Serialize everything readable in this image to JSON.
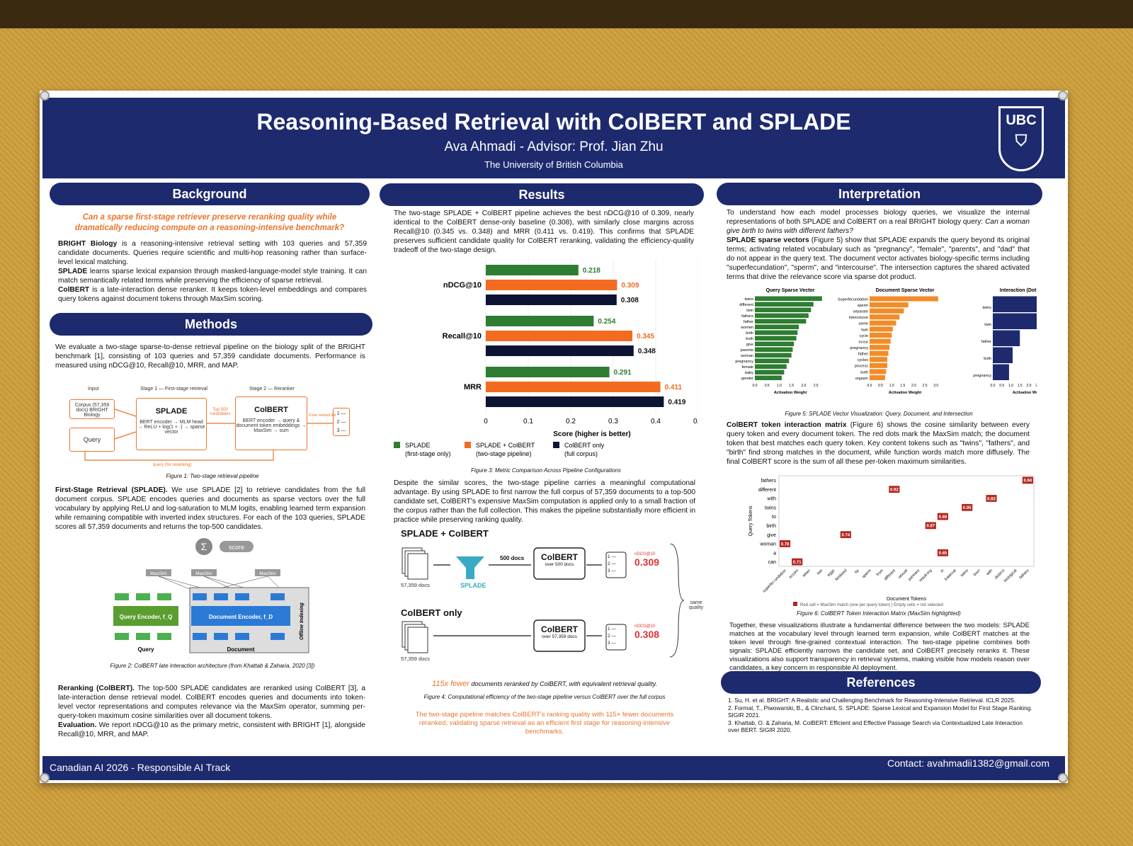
{
  "header": {
    "title": "Reasoning-Based Retrieval with ColBERT and SPLADE",
    "authors": "Ava Ahmadi - Advisor: Prof. Jian Zhu",
    "institution": "The University of British Columbia",
    "logo": "UBC"
  },
  "footer": {
    "left": "Canadian AI 2026 - Responsible AI Track",
    "right": "Contact: avahmadii1382@gmail.com"
  },
  "background": {
    "heading": "Background",
    "question": "Can a sparse first-stage retriever preserve reranking quality while dramatically reducing compute on a reasoning-intensive benchmark?",
    "p1_term": "BRIGHT Biology",
    "p1": " is a reasoning-intensive retrieval setting with 103 queries and 57,359 candidate documents. Queries require scientific and multi-hop reasoning rather than surface-level lexical matching.",
    "p2_term": "SPLADE",
    "p2": " learns sparse lexical expansion through masked-language-model style training. It can match semantically related terms while preserving the efficiency of sparse retrieval.",
    "p3_term": "ColBERT",
    "p3": " is a late-interaction dense reranker. It keeps token-level embeddings and compares query tokens against document tokens through MaxSim scoring."
  },
  "methods": {
    "heading": "Methods",
    "intro": "We evaluate a two-stage sparse-to-dense retrieval pipeline on the biology split of the BRIGHT benchmark [1], consisting of 103 queries and 57,359 candidate documents. Performance is measured using nDCG@10, Recall@10, MRR, and MAP.",
    "fig1": {
      "input": "Input",
      "stage1": "Stage 1 — First-stage retrieval",
      "stage2": "Stage 2 — Reranker",
      "corpus": "Corpus (57,359 docs) BRIGHT Biology",
      "query": "Query",
      "splade": "SPLADE",
      "splade_desc": "BERT encoder → MLM head → ReLU + log(1 + ·) → sparse vector",
      "top": "Top-500 candidates",
      "colbert": "ColBERT",
      "colbert_desc": "BERT encoder → query & document token embeddings → MaxSim → sum",
      "final": "Final ranked list",
      "ranks": [
        "1 —",
        "2 —",
        "3 —"
      ],
      "loop": "query (for reranking)",
      "caption": "Figure 1: Two-stage retrieval pipeline"
    },
    "p_first_term": "First-Stage Retrieval (SPLADE).",
    "p_first": " We use SPLADE [2] to retrieve candidates from the full document corpus. SPLADE encodes queries and documents as sparse vectors over the full vocabulary by applying ReLU and log-saturation to MLM logits, enabling learned term expansion while remaining compatible with inverted index structures. For each of the 103 queries, SPLADE scores all 57,359 documents and returns the top-500 candidates.",
    "fig2": {
      "score": "score",
      "maxsim": "MaxSim",
      "qenc": "Query Encoder, f_Q",
      "denc": "Document Encoder, f_D",
      "query": "Query",
      "doc": "Document",
      "offline": "Offline Indexing",
      "caption": "Figure 2: ColBERT late interaction architecture (from Khattab & Zaharia, 2020 [3])"
    },
    "p_rerank_term": "Reranking (ColBERT).",
    "p_rerank": " The top-500 SPLADE candidates are reranked using ColBERT [3], a late-interaction dense retrieval model. ColBERT encodes queries and documents into token-level vector representations and computes relevance via the MaxSim operator, summing per-query-token maximum cosine similarities over all document tokens.",
    "p_eval_term": "Evaluation.",
    "p_eval": " We report nDCG@10 as the primary metric, consistent with BRIGHT [1], alongside Recall@10, MRR, and MAP."
  },
  "results": {
    "heading": "Results",
    "intro": "The two-stage SPLADE + ColBERT pipeline achieves the best nDCG@10 of 0.309, nearly identical to the ColBERT dense-only baseline (0.308), with similarly close margins across Recall@10 (0.345 vs. 0.348) and MRR (0.411 vs. 0.419). This confirms that SPLADE preserves sufficient candidate quality for ColBERT reranking, validating the efficiency-quality tradeoff of the two-stage design.",
    "fig3_caption": "Figure 3: Metric Comparison Across Pipeline Configurations",
    "p2": "Despite the similar scores, the two-stage pipeline carries a meaningful computational advantage. By using SPLADE to first narrow the full corpus of 57,359 documents to a top-500 candidate set, ColBERT's expensive MaxSim computation is applied only to a small fraction of the corpus rather than the full collection. This makes the pipeline substantially more efficient in practice while preserving ranking quality.",
    "fig4": {
      "title_a": "SPLADE + ColBERT",
      "title_b": "ColBERT only",
      "docs_a": "57,359 docs",
      "docs_b": "57,359 docs",
      "splade": "SPLADE",
      "arrow": "500 docs",
      "colbert": "ColBERT",
      "over_a": "over 500 docs",
      "over_b": "over 57,359 docs",
      "ranks": [
        "1 —",
        "2 —",
        "3 —"
      ],
      "metric": "nDCG@10",
      "score_a": "0.309",
      "score_b": "0.308",
      "same": "same quality",
      "fewer_em": "115x fewer",
      "fewer": " documents reranked by ColBERT, with equivalent retrieval quality.",
      "caption": "Figure 4: Computational efficiency of the two-stage pipeline versus ColBERT over the full corpus"
    },
    "conclusion": "The two-stage pipeline matches ColBERT's ranking quality with 115× fewer documents reranked, validating sparse retrieval as an efficient first stage for reasoning-intensive benchmarks."
  },
  "interp": {
    "heading": "Interpretation",
    "p1a": "To understand how each model processes biology queries, we visualize the internal representations of both SPLADE and ColBERT on a real BRIGHT biology query: ",
    "p1q": "Can a woman give birth to twins with different fathers?",
    "p2_term": "SPLADE sparse vectors",
    "p2": " (Figure 5) show that SPLADE expands the query beyond its original terms; activating related vocabulary such as \"pregnancy\", \"female\", \"parents\", and \"dad\" that do not appear in the query text. The document vector activates biology-specific terms including \"superfecundation\", \"sperm\", and \"intercourse\". The intersection captures the shared activated terms that drive the relevance score via sparse dot product.",
    "fig5_caption": "Figure 5: SPLADE Vector Visualization: Query, Document, and Intersection",
    "p3_term": "ColBERT token interaction matrix",
    "p3": " (Figure 6) shows the cosine similarity between every query token and every document token. The red dots mark the MaxSim match; the document token that best matches each query token. Key content tokens such as \"twins\", \"fathers\", and \"birth\" find strong matches in the document, while function words match more diffusely. The final ColBERT score is the sum of all these per-token maximum similarities.",
    "fig6_caption": "Figure 6: ColBERT Token Interaction Matrix (MaxSim highlighted)",
    "fig6_legend": "Red cell = MaxSim match (one per query token)  |  Empty cells = not selected",
    "p4": "Together, these visualizations illustrate a fundamental difference between the two models: SPLADE matches at the vocabulary level through learned term expansion, while ColBERT matches at the token level through fine-grained contextual interaction. The two-stage pipeline combines both signals: SPLADE efficiently narrows the candidate set, and ColBERT precisely reranks it. These visualizations also support transparency in retrieval systems, making visible how models reason over candidates, a key concern in responsible AI deployment."
  },
  "references": {
    "heading": "References",
    "items": [
      "1. Su, H. et al. BRIGHT: A Realistic and Challenging Benchmark for Reasoning-Intensive Retrieval. ICLR 2025.",
      "2. Formal, T., Piwowarski, B., & Clinchant, S. SPLADE: Sparse Lexical and Expansion Model for First Stage Ranking. SIGIR 2021.",
      "3. Khattab, O. & Zaharia, M. ColBERT: Efficient and Effective Passage Search via Contextualized Late Interaction over BERT. SIGIR 2020."
    ]
  },
  "chart_data": [
    {
      "type": "bar",
      "orientation": "horizontal",
      "categories": [
        "nDCG@10",
        "Recall@10",
        "MRR"
      ],
      "series": [
        {
          "name": "SPLADE (first-stage only)",
          "color": "#2e7d32",
          "values": [
            0.218,
            0.254,
            0.291
          ]
        },
        {
          "name": "SPLADE + ColBERT (two-stage pipeline)",
          "color": "#f26b21",
          "values": [
            0.309,
            0.345,
            0.411
          ]
        },
        {
          "name": "ColBERT only (full corpus)",
          "color": "#0d1433",
          "values": [
            0.308,
            0.348,
            0.419
          ]
        }
      ],
      "xlabel": "Score (higher is better)",
      "xlim": [
        0,
        0.5
      ],
      "xticks": [
        "0",
        "0.1",
        "0.2",
        "0.3",
        "0.4",
        "0.5"
      ],
      "legend": "bottom"
    },
    {
      "type": "bar",
      "orientation": "horizontal",
      "title": "Query Sparse Vector",
      "color": "#2e7d32",
      "categories": [
        "twins",
        "different",
        "twin",
        "fathers",
        "father",
        "women",
        "birth",
        "both",
        "give",
        "parents",
        "woman",
        "pregnancy",
        "female",
        "baby",
        "gender"
      ],
      "values": [
        2.75,
        2.4,
        2.3,
        2.2,
        2.1,
        1.8,
        1.75,
        1.7,
        1.6,
        1.55,
        1.5,
        1.4,
        1.3,
        1.2,
        1.1
      ],
      "xlabel": "Activation Weight",
      "xticks": [
        "0.0",
        "0.5",
        "1.0",
        "1.5",
        "2.0",
        "2.5"
      ]
    },
    {
      "type": "bar",
      "orientation": "horizontal",
      "title": "Document Sparse Vector",
      "color": "#f28c28",
      "categories": [
        "Superfecundation",
        "sperm",
        "separate",
        "intercourse",
        "same",
        "twin",
        "cycle",
        "occur",
        "pregnancy",
        "father",
        "cycles",
        "process",
        "both",
        "orgasm"
      ],
      "values": [
        3.1,
        1.75,
        1.55,
        1.35,
        1.2,
        1.05,
        1.0,
        0.95,
        0.9,
        0.85,
        0.8,
        0.8,
        0.75,
        0.7
      ],
      "xlabel": "Activation Weight",
      "xticks": [
        "0.0",
        "0.5",
        "1.0",
        "1.5",
        "2.0",
        "2.5",
        "3.0"
      ]
    },
    {
      "type": "bar",
      "orientation": "horizontal",
      "title": "Interaction (Dot Product)",
      "color": "#1d2a6e",
      "categories": [
        "twins",
        "twin",
        "father",
        "both",
        "pregnancy"
      ],
      "values": [
        3.9,
        2.5,
        1.5,
        1.1,
        0.9
      ],
      "xlabel": "Activation Weight",
      "xticks": [
        "0.0",
        "0.5",
        "1.0",
        "1.5",
        "2.0",
        "2.5",
        "3.0",
        "3.5",
        "4.0"
      ]
    },
    {
      "type": "heatmap",
      "ylabel": "Query Tokens",
      "xlabel": "Document Tokens",
      "y": [
        "fathers",
        "different",
        "with",
        "twins",
        "to",
        "birth",
        "give",
        "woman",
        "a",
        "can"
      ],
      "x": [
        "superfec-undation",
        "occurs",
        "when",
        "two",
        "eggs",
        "fertilized",
        "by",
        "sperm",
        "from",
        "different",
        "sexual",
        "partners",
        "result-ing",
        "in",
        "fraternal",
        "twins",
        "born",
        "with",
        "distinct",
        "biological",
        "fathers"
      ],
      "cells": [
        {
          "y": "fathers",
          "x": "fathers",
          "v": 0.94
        },
        {
          "y": "different",
          "x": "different",
          "v": 0.92
        },
        {
          "y": "with",
          "x": "with",
          "v": 0.83
        },
        {
          "y": "twins",
          "x": "twins",
          "v": 0.95
        },
        {
          "y": "to",
          "x": "in",
          "v": 0.69
        },
        {
          "y": "birth",
          "x": "result-ing",
          "v": 0.87
        },
        {
          "y": "give",
          "x": "fertilized",
          "v": 0.74
        },
        {
          "y": "woman",
          "x": "superfec-undation",
          "v": 0.78
        },
        {
          "y": "a",
          "x": "in",
          "v": 0.65
        },
        {
          "y": "can",
          "x": "occurs",
          "v": 0.71
        }
      ]
    }
  ]
}
